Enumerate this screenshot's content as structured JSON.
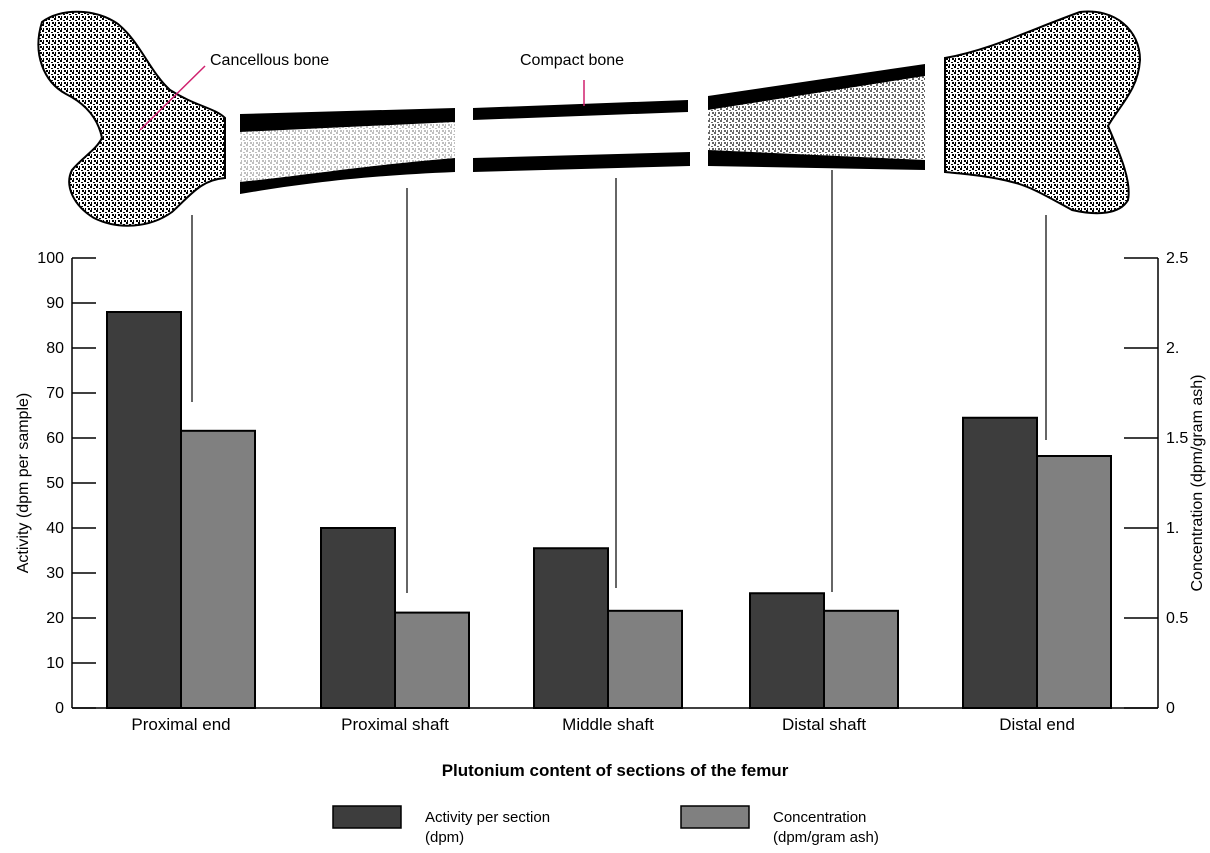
{
  "chart_data": {
    "type": "bar",
    "title": "Plutonium content of sections of the femur",
    "categories": [
      "Proximal end",
      "Proximal shaft",
      "Middle shaft",
      "Distal shaft",
      "Distal end"
    ],
    "series": [
      {
        "name": "Activity per section (dpm)",
        "legend_lines": [
          "Activity per section",
          "(dpm)"
        ],
        "axis": "left",
        "color": "#3d3d3d",
        "values": [
          88,
          40,
          35.5,
          25.5,
          64.5
        ]
      },
      {
        "name": "Concentration (dpm/gram ash)",
        "legend_lines": [
          "Concentration",
          "(dpm/gram ash)"
        ],
        "axis": "right",
        "color": "#808080",
        "values": [
          1.54,
          0.53,
          0.54,
          0.54,
          1.4
        ]
      }
    ],
    "y_left": {
      "label": "Activity (dpm per sample)",
      "range": [
        0,
        100
      ],
      "ticks": [
        "0",
        "10",
        "20",
        "30",
        "40",
        "50",
        "60",
        "70",
        "80",
        "90",
        "100"
      ]
    },
    "y_right": {
      "label": "Concentration (dpm/gram ash)",
      "range": [
        0,
        2.5
      ],
      "ticks": [
        "0",
        "0.5",
        "1.",
        "1.5",
        "2.",
        "2.5"
      ]
    },
    "grid": false,
    "legend_position": "bottom",
    "annotations": [
      {
        "text": "Cancellous bone",
        "color": "#d0206e"
      },
      {
        "text": "Compact bone",
        "color": "#d0206e"
      }
    ]
  }
}
